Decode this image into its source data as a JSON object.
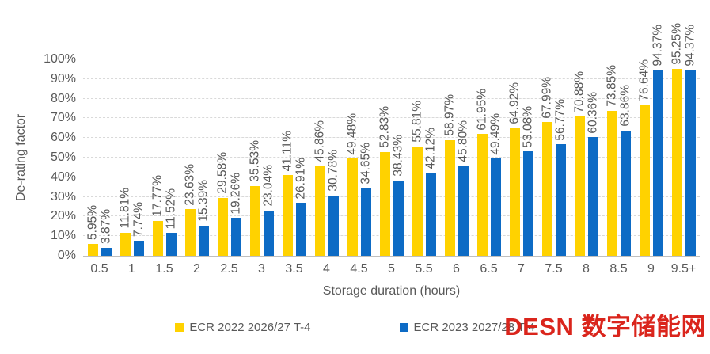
{
  "chart_data": {
    "type": "bar",
    "title": "",
    "xlabel": "Storage duration (hours)",
    "ylabel": "De-rating factor",
    "ylim": [
      0,
      100
    ],
    "y_ticks": [
      "0%",
      "10%",
      "20%",
      "30%",
      "40%",
      "50%",
      "60%",
      "70%",
      "80%",
      "90%",
      "100%"
    ],
    "grid": true,
    "legend_position": "bottom",
    "categories": [
      "0.5",
      "1",
      "1.5",
      "2",
      "2.5",
      "3",
      "3.5",
      "4",
      "4.5",
      "5",
      "5.5",
      "6",
      "6.5",
      "7",
      "7.5",
      "8",
      "8.5",
      "9",
      "9.5+"
    ],
    "series": [
      {
        "name": "ECR 2022 2026/27 T-4",
        "color": "#FFD200",
        "values": [
          5.95,
          11.81,
          17.77,
          23.63,
          29.58,
          35.53,
          41.11,
          45.86,
          49.48,
          52.83,
          55.81,
          58.97,
          61.95,
          64.92,
          67.99,
          70.88,
          73.85,
          76.64,
          95.25
        ],
        "labels": [
          "5.95%",
          "11.81%",
          "17.77%",
          "23.63%",
          "29.58%",
          "35.53%",
          "41.11%",
          "45.86%",
          "49.48%",
          "52.83%",
          "55.81%",
          "58.97%",
          "61.95%",
          "64.92%",
          "67.99%",
          "70.88%",
          "73.85%",
          "76.64%",
          "95.25%"
        ]
      },
      {
        "name": "ECR 2023 2027/28 T-4",
        "color": "#0D6BC5",
        "values": [
          3.87,
          7.74,
          11.52,
          15.39,
          19.26,
          23.04,
          26.91,
          30.78,
          34.65,
          38.43,
          42.12,
          45.8,
          49.49,
          53.08,
          56.77,
          60.36,
          63.86,
          94.37,
          94.37
        ],
        "labels": [
          "3.87%",
          "7.74%",
          "11.52%",
          "15.39%",
          "19.26%",
          "23.04%",
          "26.91%",
          "30.78%",
          "34.65%",
          "38.43%",
          "42.12%",
          "45.80%",
          "49.49%",
          "53.08%",
          "56.77%",
          "60.36%",
          "63.86%",
          "94.37%",
          "94.37%"
        ]
      }
    ]
  },
  "watermark": {
    "text": "DESN 数字储能网",
    "color": "#DA251C"
  }
}
